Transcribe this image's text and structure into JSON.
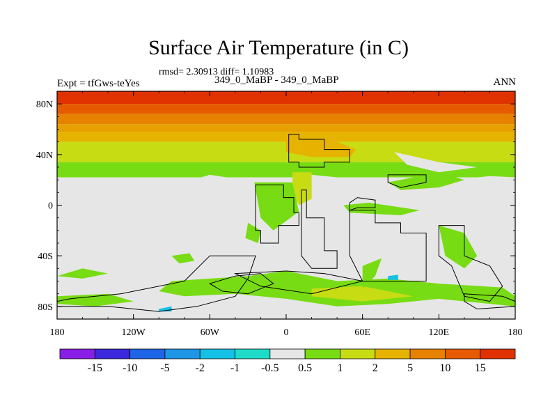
{
  "chart_data": {
    "type": "heatmap",
    "title": "Surface Air Temperature (in C)",
    "stats_label": "rmsd= 2.30913 diff= 1.10983",
    "case_label": "349_0_MaBP - 349_0_MaBP",
    "experiment_label": "Expt = tfGws-teYes",
    "season_label": "ANN",
    "x_axis": {
      "range": [
        -180,
        180
      ],
      "tick_values": [
        -180,
        -120,
        -60,
        0,
        60,
        120,
        180
      ],
      "tick_labels": [
        "180",
        "120W",
        "60W",
        "0",
        "60E",
        "120E",
        "180"
      ]
    },
    "y_axis": {
      "range": [
        -90,
        90
      ],
      "tick_values": [
        80,
        40,
        0,
        -40,
        -80
      ],
      "tick_labels": [
        "80N",
        "40N",
        "0",
        "40S",
        "80S"
      ]
    },
    "colorbar": {
      "labels": [
        "-15",
        "-10",
        "-5",
        "-2",
        "-1",
        "-0.5",
        "0.5",
        "1",
        "2",
        "5",
        "10",
        "15"
      ],
      "colors": [
        "#8a1ee6",
        "#3c28dc",
        "#1e64e6",
        "#1e96e6",
        "#14c0e6",
        "#1edcc8",
        "#e6e6e6",
        "#78dc14",
        "#c8dc14",
        "#e6b400",
        "#e68200",
        "#e65a00",
        "#e03200"
      ]
    },
    "latitude_bands": [
      {
        "lat_from": 90,
        "lat_to": 80,
        "color": "#e03200"
      },
      {
        "lat_from": 80,
        "lat_to": 72,
        "color": "#e65a00"
      },
      {
        "lat_from": 72,
        "lat_to": 64,
        "color": "#e68200"
      },
      {
        "lat_from": 64,
        "lat_to": 58,
        "color": "#e6a000"
      },
      {
        "lat_from": 58,
        "lat_to": 50,
        "color": "#e6b400"
      },
      {
        "lat_from": 50,
        "lat_to": 34,
        "color": "#c8dc14"
      },
      {
        "lat_from": 34,
        "lat_to": 22,
        "color": "#78dc14"
      }
    ],
    "regions": [
      {
        "color": "#e6b400",
        "points": [
          [
            0,
            52
          ],
          [
            20,
            52
          ],
          [
            40,
            50
          ],
          [
            55,
            44
          ],
          [
            50,
            38
          ],
          [
            20,
            38
          ],
          [
            0,
            42
          ]
        ]
      },
      {
        "color": "#c8dc14",
        "points": [
          [
            5,
            26
          ],
          [
            20,
            26
          ],
          [
            20,
            5
          ],
          [
            10,
            0
          ],
          [
            5,
            10
          ]
        ]
      },
      {
        "color": "#78dc14",
        "points": [
          [
            -25,
            18
          ],
          [
            5,
            18
          ],
          [
            10,
            -5
          ],
          [
            -10,
            -20
          ],
          [
            -20,
            -10
          ]
        ]
      },
      {
        "color": "#78dc14",
        "points": [
          [
            -90,
            -60
          ],
          [
            -30,
            -56
          ],
          [
            0,
            -52
          ],
          [
            40,
            -60
          ],
          [
            80,
            -58
          ],
          [
            120,
            -62
          ],
          [
            170,
            -65
          ],
          [
            180,
            -72
          ],
          [
            180,
            -80
          ],
          [
            120,
            -74
          ],
          [
            80,
            -78
          ],
          [
            40,
            -80
          ],
          [
            0,
            -74
          ],
          [
            -40,
            -70
          ],
          [
            -80,
            -72
          ],
          [
            -100,
            -68
          ]
        ]
      },
      {
        "color": "#c8dc14",
        "points": [
          [
            20,
            -66
          ],
          [
            60,
            -64
          ],
          [
            100,
            -72
          ],
          [
            60,
            -76
          ],
          [
            20,
            -72
          ]
        ]
      },
      {
        "color": "#78dc14",
        "points": [
          [
            -180,
            -72
          ],
          [
            -140,
            -70
          ],
          [
            -120,
            -76
          ],
          [
            -150,
            -80
          ],
          [
            -180,
            -78
          ]
        ]
      },
      {
        "color": "#78dc14",
        "points": [
          [
            60,
            -66
          ],
          [
            60,
            -48
          ],
          [
            75,
            -42
          ],
          [
            70,
            -56
          ]
        ]
      },
      {
        "color": "#78dc14",
        "points": [
          [
            -180,
            -56
          ],
          [
            -160,
            -50
          ],
          [
            -140,
            -54
          ],
          [
            -160,
            -58
          ]
        ]
      },
      {
        "color": "#78dc14",
        "points": [
          [
            80,
            18
          ],
          [
            120,
            26
          ],
          [
            140,
            20
          ],
          [
            120,
            14
          ],
          [
            90,
            12
          ]
        ]
      },
      {
        "color": "#78dc14",
        "points": [
          [
            45,
            0
          ],
          [
            65,
            2
          ],
          [
            105,
            -4
          ],
          [
            90,
            -8
          ],
          [
            50,
            -6
          ]
        ]
      },
      {
        "color": "#78dc14",
        "points": [
          [
            120,
            -16
          ],
          [
            140,
            -22
          ],
          [
            150,
            -40
          ],
          [
            140,
            -50
          ],
          [
            125,
            -40
          ]
        ]
      },
      {
        "color": "#78dc14",
        "points": [
          [
            -30,
            -14
          ],
          [
            -20,
            -20
          ],
          [
            -22,
            -30
          ],
          [
            -32,
            -26
          ]
        ]
      },
      {
        "color": "#78dc14",
        "points": [
          [
            -90,
            -40
          ],
          [
            -76,
            -38
          ],
          [
            -72,
            -44
          ],
          [
            -84,
            -46
          ]
        ]
      },
      {
        "color": "#14c0e6",
        "points": [
          [
            80,
            -56
          ],
          [
            88,
            -55
          ],
          [
            88,
            -59
          ],
          [
            80,
            -59
          ]
        ]
      },
      {
        "color": "#14c0e6",
        "points": [
          [
            -100,
            -82
          ],
          [
            -90,
            -80
          ],
          [
            -90,
            -84
          ],
          [
            -100,
            -84
          ]
        ]
      },
      {
        "color": "#e6e6e6",
        "points": [
          [
            85,
            42
          ],
          [
            120,
            34
          ],
          [
            150,
            30
          ],
          [
            120,
            26
          ],
          [
            95,
            32
          ]
        ]
      }
    ],
    "outlines": [
      [
        [
          2,
          56
        ],
        [
          10,
          56
        ],
        [
          10,
          52
        ],
        [
          30,
          52
        ],
        [
          30,
          44
        ],
        [
          50,
          44
        ],
        [
          50,
          34
        ],
        [
          30,
          34
        ],
        [
          30,
          30
        ],
        [
          10,
          30
        ],
        [
          10,
          34
        ],
        [
          2,
          34
        ]
      ],
      [
        [
          -24,
          16
        ],
        [
          -2,
          16
        ],
        [
          -2,
          6
        ],
        [
          6,
          6
        ],
        [
          6,
          -6
        ],
        [
          10,
          -6
        ],
        [
          10,
          -16
        ],
        [
          -6,
          -16
        ],
        [
          -6,
          -30
        ],
        [
          -20,
          -30
        ],
        [
          -20,
          -20
        ],
        [
          -24,
          -20
        ]
      ],
      [
        [
          12,
          12
        ],
        [
          16,
          12
        ],
        [
          16,
          -10
        ],
        [
          30,
          -10
        ],
        [
          30,
          -36
        ],
        [
          40,
          -36
        ],
        [
          40,
          -50
        ],
        [
          20,
          -50
        ],
        [
          12,
          -40
        ]
      ],
      [
        [
          50,
          -4
        ],
        [
          70,
          -4
        ],
        [
          70,
          -14
        ],
        [
          90,
          -14
        ],
        [
          90,
          -22
        ],
        [
          110,
          -22
        ],
        [
          110,
          -60
        ],
        [
          60,
          -60
        ],
        [
          50,
          -40
        ],
        [
          50,
          -20
        ]
      ],
      [
        [
          -24,
          -40
        ],
        [
          -60,
          -40
        ],
        [
          -80,
          -60
        ],
        [
          -130,
          -70
        ],
        [
          -170,
          -74
        ],
        [
          -180,
          -76
        ],
        [
          -180,
          -80
        ],
        [
          -140,
          -80
        ],
        [
          -100,
          -84
        ],
        [
          -70,
          -80
        ],
        [
          -40,
          -72
        ],
        [
          -30,
          -58
        ]
      ],
      [
        [
          -60,
          -62
        ],
        [
          -40,
          -56
        ],
        [
          -20,
          -54
        ],
        [
          -10,
          -62
        ],
        [
          -30,
          -70
        ],
        [
          -50,
          -68
        ]
      ],
      [
        [
          -40,
          -54
        ],
        [
          0,
          -52
        ],
        [
          30,
          -54
        ],
        [
          60,
          -60
        ],
        [
          20,
          -70
        ],
        [
          -20,
          -64
        ]
      ],
      [
        [
          120,
          -16
        ],
        [
          140,
          -16
        ],
        [
          140,
          -40
        ],
        [
          160,
          -48
        ],
        [
          170,
          -64
        ],
        [
          160,
          -76
        ],
        [
          140,
          -72
        ],
        [
          130,
          -48
        ],
        [
          120,
          -40
        ]
      ],
      [
        [
          140,
          -70
        ],
        [
          170,
          -72
        ],
        [
          180,
          -76
        ],
        [
          180,
          -80
        ],
        [
          150,
          -82
        ],
        [
          140,
          -76
        ]
      ],
      [
        [
          50,
          -4
        ],
        [
          56,
          -2
        ],
        [
          70,
          -2
        ],
        [
          70,
          4
        ],
        [
          56,
          6
        ],
        [
          50,
          2
        ]
      ],
      [
        [
          80,
          24
        ],
        [
          110,
          24
        ],
        [
          110,
          18
        ],
        [
          90,
          14
        ],
        [
          80,
          18
        ]
      ]
    ]
  }
}
